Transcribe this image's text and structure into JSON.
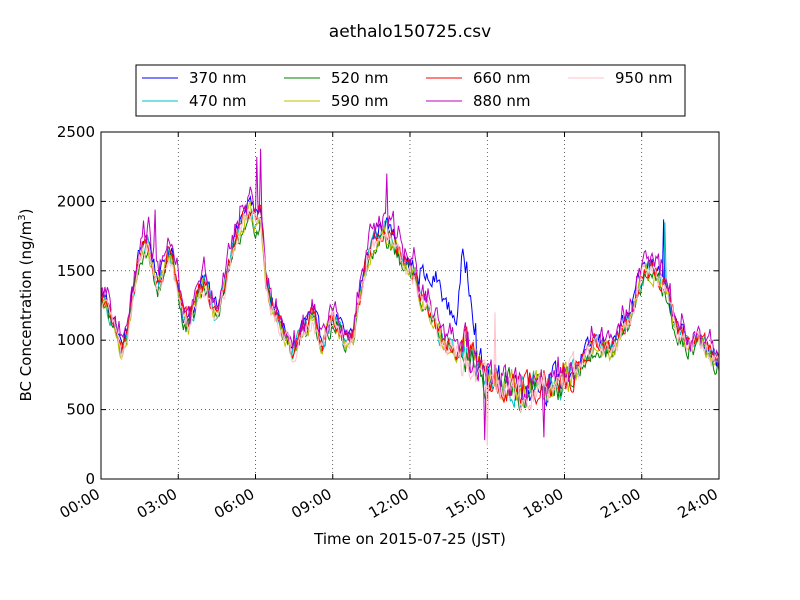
{
  "chart_data": {
    "type": "line",
    "title": "aethalo150725.csv",
    "xlabel": "Time on 2015-07-25 (JST)",
    "ylabel": "BC Concentration (ng/m³)",
    "ylabel_main": "BC Concentration (ng/m",
    "ylabel_sup": "3",
    "ylabel_end": ")",
    "xlim": [
      0,
      24
    ],
    "ylim": [
      0,
      2500
    ],
    "x_ticks": [
      0,
      3,
      6,
      9,
      12,
      15,
      18,
      21,
      24
    ],
    "x_tick_labels": [
      "00:00",
      "03:00",
      "06:00",
      "09:00",
      "12:00",
      "15:00",
      "18:00",
      "21:00",
      "24:00"
    ],
    "y_ticks": [
      0,
      500,
      1000,
      1500,
      2000,
      2500
    ],
    "y_tick_labels": [
      "0",
      "500",
      "1000",
      "1500",
      "2000",
      "2500"
    ],
    "grid": true,
    "legend_position": "top, above plot",
    "x_unit": "hours",
    "series": [
      {
        "name": "370 nm",
        "color": "#0000ff",
        "scale": 1.0
      },
      {
        "name": "470 nm",
        "color": "#00bfbf",
        "scale": 0.97
      },
      {
        "name": "520 nm",
        "color": "#008000",
        "scale": 0.95
      },
      {
        "name": "590 nm",
        "color": "#bfbf00",
        "scale": 0.96
      },
      {
        "name": "660 nm",
        "color": "#ff0000",
        "scale": 0.98
      },
      {
        "name": "880 nm",
        "color": "#bf00bf",
        "scale": 1.03
      },
      {
        "name": "950 nm",
        "color": "#ffc0cb",
        "scale": 0.96
      }
    ],
    "baseline": {
      "x": [
        0,
        0.2,
        0.4,
        0.6,
        0.8,
        1.0,
        1.2,
        1.4,
        1.6,
        1.8,
        2.0,
        2.2,
        2.4,
        2.6,
        2.8,
        3.0,
        3.2,
        3.4,
        3.6,
        3.8,
        4.0,
        4.2,
        4.4,
        4.6,
        4.8,
        5.0,
        5.2,
        5.4,
        5.6,
        5.8,
        6.0,
        6.2,
        6.4,
        6.6,
        6.8,
        7.0,
        7.2,
        7.4,
        7.6,
        7.8,
        8.0,
        8.2,
        8.4,
        8.6,
        8.8,
        9.0,
        9.2,
        9.4,
        9.6,
        9.8,
        10.0,
        10.2,
        10.4,
        10.6,
        10.8,
        11.0,
        11.2,
        11.4,
        11.6,
        11.8,
        12.0,
        12.2,
        12.4,
        12.6,
        12.8,
        13.0,
        13.2,
        13.4,
        13.6,
        13.8,
        14.0,
        14.2,
        14.4,
        14.6,
        14.8,
        15.0,
        15.2,
        15.4,
        15.6,
        15.8,
        16.0,
        16.2,
        16.4,
        16.6,
        16.8,
        17.0,
        17.2,
        17.4,
        17.6,
        17.8,
        18.0,
        18.2,
        18.4,
        18.6,
        18.8,
        19.0,
        19.2,
        19.4,
        19.6,
        19.8,
        20.0,
        20.2,
        20.4,
        20.6,
        20.8,
        21.0,
        21.2,
        21.4,
        21.6,
        21.8,
        22.0,
        22.2,
        22.4,
        22.6,
        22.8,
        23.0,
        23.2,
        23.4,
        23.6,
        23.8,
        24.0
      ],
      "y": [
        1350,
        1300,
        1200,
        1100,
        950,
        1050,
        1300,
        1550,
        1700,
        1750,
        1600,
        1450,
        1500,
        1650,
        1600,
        1400,
        1200,
        1150,
        1250,
        1400,
        1450,
        1350,
        1250,
        1300,
        1400,
        1600,
        1750,
        1850,
        1950,
        2000,
        1900,
        1950,
        1500,
        1300,
        1200,
        1100,
        1050,
        950,
        1000,
        1100,
        1150,
        1200,
        1100,
        1000,
        1100,
        1200,
        1150,
        1050,
        1000,
        1050,
        1300,
        1500,
        1650,
        1750,
        1800,
        1850,
        1800,
        1750,
        1650,
        1600,
        1550,
        1500,
        1350,
        1300,
        1250,
        1150,
        1050,
        1000,
        1000,
        950,
        950,
        950,
        900,
        850,
        800,
        750,
        720,
        700,
        700,
        720,
        700,
        680,
        650,
        660,
        680,
        700,
        690,
        680,
        700,
        720,
        750,
        780,
        800,
        850,
        900,
        950,
        1000,
        1000,
        980,
        950,
        1000,
        1100,
        1150,
        1200,
        1350,
        1500,
        1550,
        1550,
        1500,
        1450,
        1400,
        1200,
        1100,
        1050,
        1000,
        1000,
        1050,
        1000,
        950,
        900,
        850
      ]
    },
    "overrides_370": {
      "x": [
        12.4,
        12.6,
        12.8,
        13.0,
        13.2,
        13.4,
        13.6,
        13.8,
        14.0,
        14.2,
        14.4,
        14.6
      ],
      "y": [
        1500,
        1450,
        1400,
        1450,
        1380,
        1250,
        1200,
        1150,
        1500,
        1550,
        1350,
        1050
      ]
    },
    "spikes": [
      {
        "series": "880 nm",
        "x": 6.2,
        "y": 2380
      },
      {
        "series": "880 nm",
        "x": 6.05,
        "y": 2320
      },
      {
        "series": "880 nm",
        "x": 2.1,
        "y": 1940
      },
      {
        "series": "880 nm",
        "x": 11.1,
        "y": 2200
      },
      {
        "series": "470 nm",
        "x": 21.9,
        "y": 1850
      },
      {
        "series": "370 nm",
        "x": 21.85,
        "y": 1870
      },
      {
        "series": "880 nm",
        "x": 14.9,
        "y": 280
      },
      {
        "series": "950 nm",
        "x": 15.0,
        "y": 240
      },
      {
        "series": "880 nm",
        "x": 17.2,
        "y": 300
      },
      {
        "series": "950 nm",
        "x": 15.3,
        "y": 1200
      }
    ]
  }
}
